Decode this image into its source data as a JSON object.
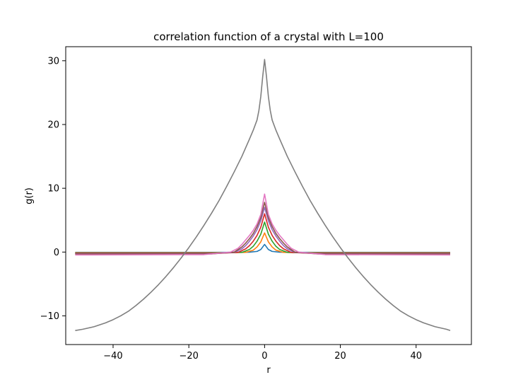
{
  "chart_data": {
    "type": "line",
    "title": "correlation function of a crystal with L=100",
    "xlabel": "r",
    "ylabel": "g(r)",
    "xlim": [
      -52.5,
      54.6
    ],
    "ylim": [
      -14.5,
      32.2
    ],
    "xticks": [
      -40,
      -20,
      0,
      20,
      40
    ],
    "yticks": [
      -10,
      0,
      10,
      20,
      30
    ],
    "grid": false,
    "legend": "none",
    "series": [
      {
        "color": "#1f77b4",
        "points": [
          [
            -50,
            -0.05
          ],
          [
            -10,
            -0.05
          ],
          [
            -4,
            -0.02
          ],
          [
            -2,
            0.1
          ],
          [
            -1,
            0.4
          ],
          [
            0,
            1.2
          ],
          [
            1,
            0.4
          ],
          [
            2,
            0.1
          ],
          [
            4,
            -0.02
          ],
          [
            10,
            -0.05
          ],
          [
            49,
            -0.05
          ]
        ]
      },
      {
        "color": "#ff7f0e",
        "points": [
          [
            -50,
            -0.1
          ],
          [
            -10,
            -0.1
          ],
          [
            -5,
            -0.05
          ],
          [
            -3,
            0.3
          ],
          [
            -2,
            0.8
          ],
          [
            -1,
            1.6
          ],
          [
            0,
            3.0
          ],
          [
            1,
            1.6
          ],
          [
            2,
            0.8
          ],
          [
            3,
            0.3
          ],
          [
            5,
            -0.05
          ],
          [
            10,
            -0.1
          ],
          [
            49,
            -0.1
          ]
        ]
      },
      {
        "color": "#2ca02c",
        "points": [
          [
            -50,
            -0.15
          ],
          [
            -12,
            -0.15
          ],
          [
            -6,
            -0.05
          ],
          [
            -4,
            0.4
          ],
          [
            -3,
            0.9
          ],
          [
            -2,
            1.7
          ],
          [
            -1,
            2.8
          ],
          [
            0,
            4.7
          ],
          [
            1,
            2.8
          ],
          [
            2,
            1.7
          ],
          [
            3,
            0.9
          ],
          [
            4,
            0.4
          ],
          [
            6,
            -0.05
          ],
          [
            12,
            -0.15
          ],
          [
            49,
            -0.15
          ]
        ]
      },
      {
        "color": "#d62728",
        "points": [
          [
            -50,
            -0.2
          ],
          [
            -12,
            -0.2
          ],
          [
            -7,
            -0.05
          ],
          [
            -5,
            0.5
          ],
          [
            -4,
            1.0
          ],
          [
            -3,
            1.7
          ],
          [
            -2,
            2.6
          ],
          [
            -1,
            3.9
          ],
          [
            0,
            6.0
          ],
          [
            1,
            3.9
          ],
          [
            2,
            2.6
          ],
          [
            3,
            1.7
          ],
          [
            4,
            1.0
          ],
          [
            5,
            0.5
          ],
          [
            7,
            -0.05
          ],
          [
            12,
            -0.2
          ],
          [
            49,
            -0.2
          ]
        ]
      },
      {
        "color": "#9467bd",
        "points": [
          [
            -50,
            -0.25
          ],
          [
            -14,
            -0.25
          ],
          [
            -8,
            -0.05
          ],
          [
            -6,
            0.5
          ],
          [
            -5,
            1.0
          ],
          [
            -4,
            1.7
          ],
          [
            -3,
            2.5
          ],
          [
            -2,
            3.5
          ],
          [
            -1,
            4.9
          ],
          [
            0,
            7.0
          ],
          [
            1,
            4.9
          ],
          [
            2,
            3.5
          ],
          [
            3,
            2.5
          ],
          [
            4,
            1.7
          ],
          [
            5,
            1.0
          ],
          [
            6,
            0.5
          ],
          [
            8,
            -0.05
          ],
          [
            14,
            -0.25
          ],
          [
            49,
            -0.25
          ]
        ]
      },
      {
        "color": "#8c564b",
        "points": [
          [
            -50,
            -0.3
          ],
          [
            -14,
            -0.3
          ],
          [
            -8,
            0.0
          ],
          [
            -6,
            0.8
          ],
          [
            -5,
            1.4
          ],
          [
            -4,
            2.1
          ],
          [
            -3,
            2.9
          ],
          [
            -2,
            4.0
          ],
          [
            -1,
            5.4
          ],
          [
            0,
            7.8
          ],
          [
            1,
            5.4
          ],
          [
            2,
            4.0
          ],
          [
            3,
            2.9
          ],
          [
            4,
            2.1
          ],
          [
            5,
            1.4
          ],
          [
            6,
            0.8
          ],
          [
            8,
            0.0
          ],
          [
            14,
            -0.3
          ],
          [
            49,
            -0.3
          ]
        ]
      },
      {
        "color": "#e377c2",
        "points": [
          [
            -50,
            -0.45
          ],
          [
            -16,
            -0.4
          ],
          [
            -9,
            0.0
          ],
          [
            -7,
            0.6
          ],
          [
            -6,
            1.2
          ],
          [
            -5,
            1.9
          ],
          [
            -4,
            2.6
          ],
          [
            -3,
            3.4
          ],
          [
            -2,
            4.4
          ],
          [
            -1,
            5.9
          ],
          [
            0,
            9.1
          ],
          [
            1,
            5.9
          ],
          [
            2,
            4.4
          ],
          [
            3,
            3.4
          ],
          [
            4,
            2.6
          ],
          [
            5,
            1.9
          ],
          [
            6,
            1.2
          ],
          [
            7,
            0.6
          ],
          [
            9,
            0.0
          ],
          [
            16,
            -0.4
          ],
          [
            49,
            -0.45
          ]
        ]
      },
      {
        "color": "#7f7f7f",
        "points": [
          [
            -50,
            -12.3
          ],
          [
            -48,
            -12.1
          ],
          [
            -45,
            -11.7
          ],
          [
            -42,
            -11.1
          ],
          [
            -40,
            -10.6
          ],
          [
            -38,
            -10.0
          ],
          [
            -36,
            -9.3
          ],
          [
            -34,
            -8.4
          ],
          [
            -32,
            -7.4
          ],
          [
            -30,
            -6.3
          ],
          [
            -28,
            -5.1
          ],
          [
            -26,
            -3.8
          ],
          [
            -24,
            -2.4
          ],
          [
            -22,
            -0.9
          ],
          [
            -20,
            0.7
          ],
          [
            -18,
            2.4
          ],
          [
            -16,
            4.2
          ],
          [
            -14,
            6.1
          ],
          [
            -12,
            8.1
          ],
          [
            -10,
            10.3
          ],
          [
            -8,
            12.6
          ],
          [
            -6,
            15.0
          ],
          [
            -4,
            17.7
          ],
          [
            -3,
            19.1
          ],
          [
            -2,
            20.7
          ],
          [
            -1.5,
            22.2
          ],
          [
            -1,
            24.4
          ],
          [
            -0.5,
            27.5
          ],
          [
            0,
            30.2
          ],
          [
            0.5,
            27.5
          ],
          [
            1,
            24.4
          ],
          [
            1.5,
            22.2
          ],
          [
            2,
            20.7
          ],
          [
            3,
            19.1
          ],
          [
            4,
            17.7
          ],
          [
            6,
            15.0
          ],
          [
            8,
            12.6
          ],
          [
            10,
            10.3
          ],
          [
            12,
            8.1
          ],
          [
            14,
            6.1
          ],
          [
            16,
            4.2
          ],
          [
            18,
            2.4
          ],
          [
            20,
            0.7
          ],
          [
            22,
            -0.9
          ],
          [
            24,
            -2.4
          ],
          [
            26,
            -3.8
          ],
          [
            28,
            -5.1
          ],
          [
            30,
            -6.3
          ],
          [
            32,
            -7.4
          ],
          [
            34,
            -8.4
          ],
          [
            36,
            -9.3
          ],
          [
            38,
            -10.0
          ],
          [
            40,
            -10.6
          ],
          [
            42,
            -11.1
          ],
          [
            45,
            -11.7
          ],
          [
            48,
            -12.1
          ],
          [
            49,
            -12.3
          ]
        ]
      }
    ]
  }
}
